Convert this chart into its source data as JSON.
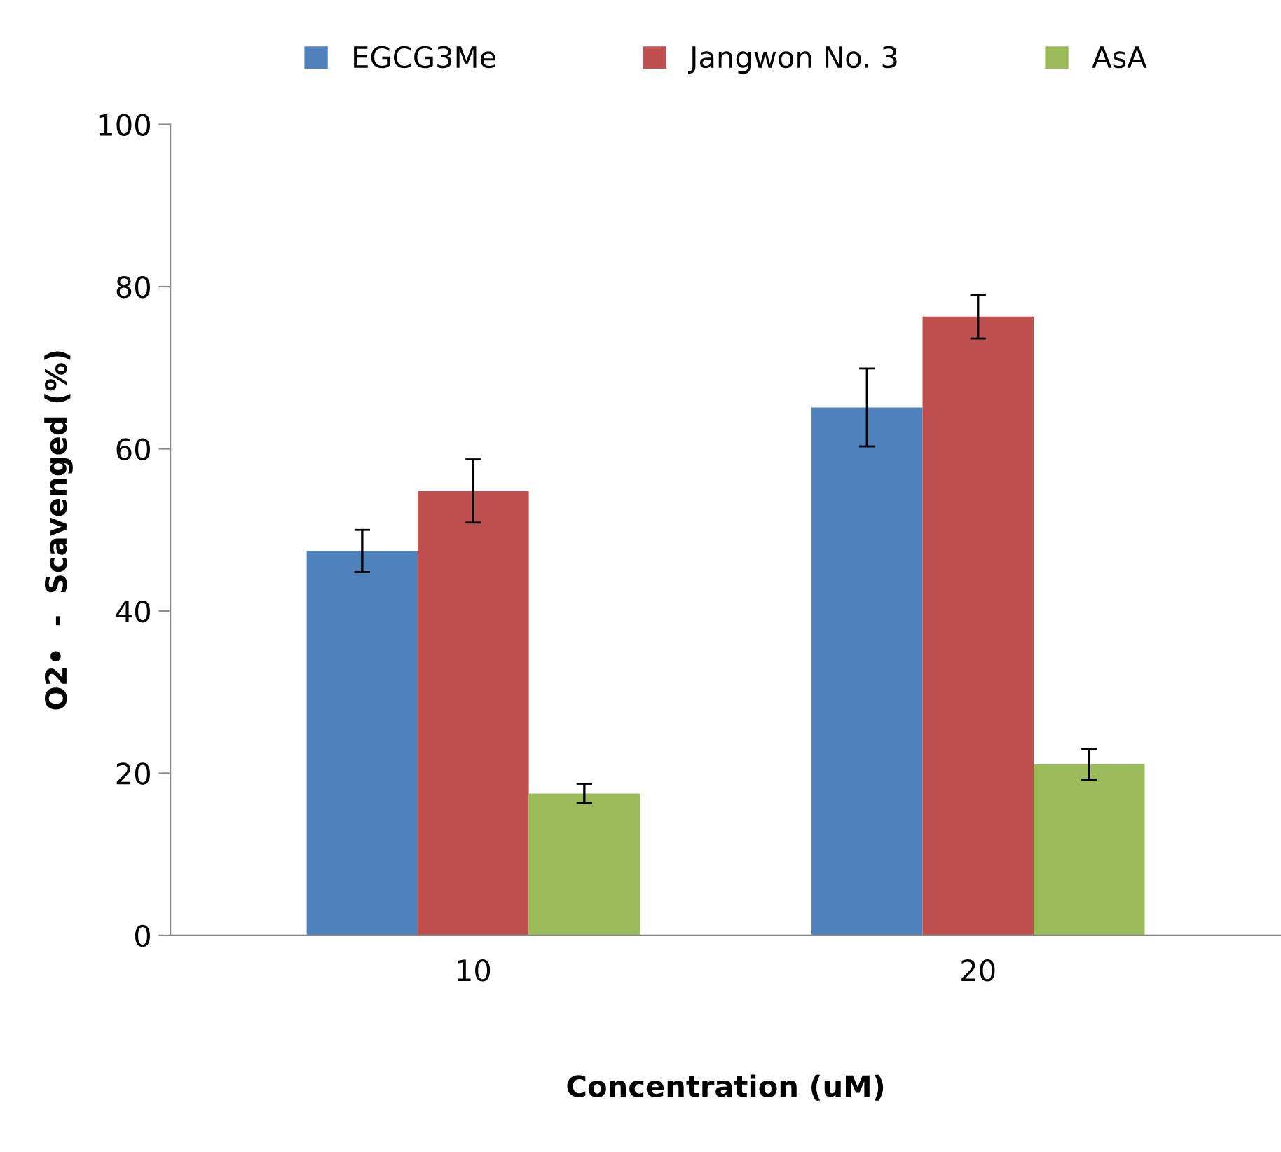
{
  "chart_data": {
    "type": "bar",
    "xlabel": "Concentration (uM)",
    "ylabel": "O2•  -  Scavenged (%)",
    "categories": [
      "10",
      "20"
    ],
    "series": [
      {
        "name": "EGCG3Me",
        "color": "#4f81bd",
        "values": [
          47.4,
          65.1
        ],
        "errors": [
          2.6,
          4.8
        ]
      },
      {
        "name": "Jangwon No. 3",
        "color": "#c0504d",
        "values": [
          54.8,
          76.3
        ],
        "errors": [
          3.9,
          2.7
        ]
      },
      {
        "name": "AsA",
        "color": "#9bbb59",
        "values": [
          17.5,
          21.1
        ],
        "errors": [
          1.2,
          1.9
        ]
      }
    ],
    "ylim": [
      0,
      100
    ],
    "yticks": [
      0,
      20,
      40,
      60,
      80,
      100
    ],
    "grid": false,
    "legend": "top"
  }
}
